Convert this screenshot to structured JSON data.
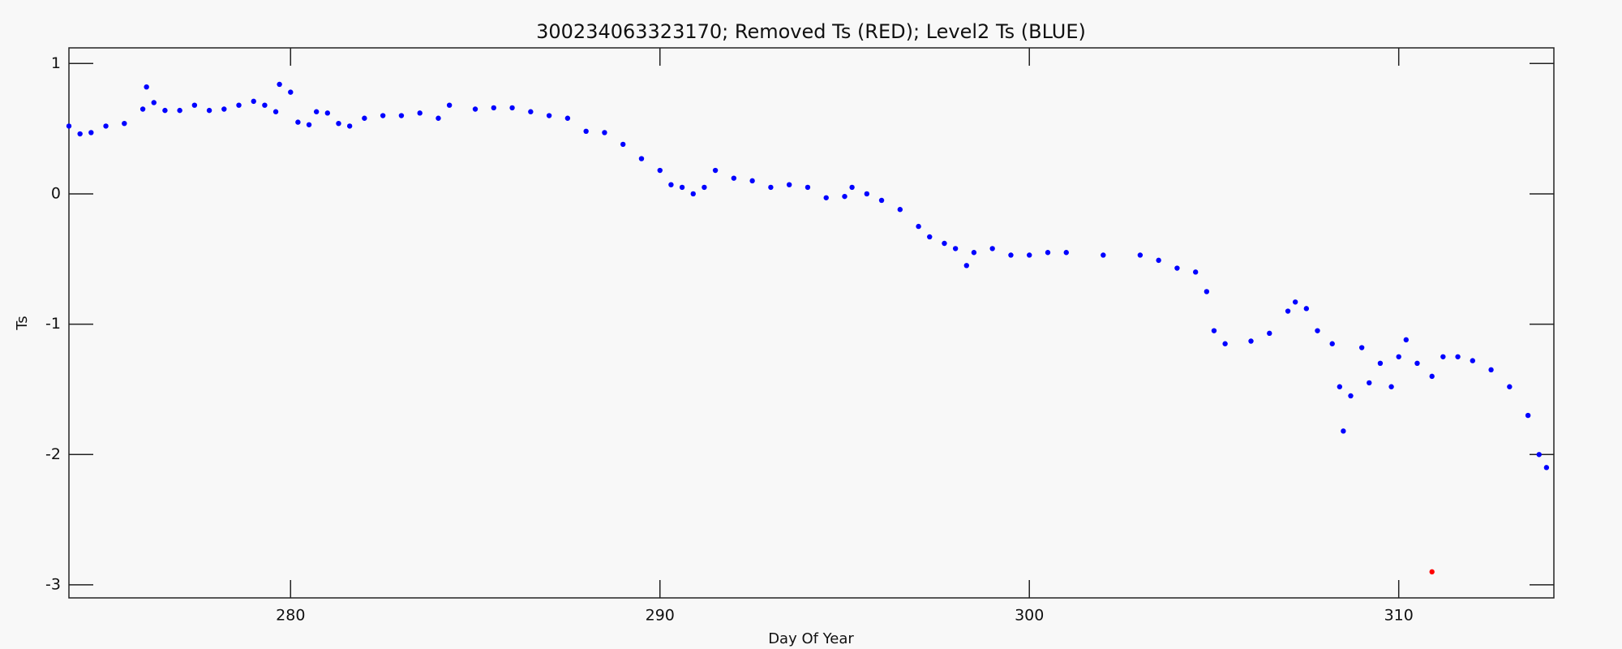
{
  "chart_data": {
    "type": "scatter",
    "title": "300234063323170; Removed Ts (RED); Level2 Ts (BLUE)",
    "x_label": "Day Of Year",
    "y_label": "Ts",
    "xlim": [
      274,
      314.2
    ],
    "ylim": [
      -3.1,
      1.12
    ],
    "xticks": [
      280,
      290,
      300,
      310
    ],
    "yticks": [
      1,
      0,
      -1,
      -2,
      -3
    ],
    "series": [
      {
        "name": "Level2 Ts",
        "color": "#0000ff",
        "x": [
          274.0,
          274.3,
          274.6,
          275.0,
          275.5,
          276.0,
          276.1,
          276.3,
          276.6,
          277.0,
          277.4,
          277.8,
          278.2,
          278.6,
          279.0,
          279.3,
          279.6,
          279.7,
          280.0,
          280.2,
          280.5,
          280.7,
          281.0,
          281.3,
          281.6,
          282.0,
          282.5,
          283.0,
          283.5,
          284.0,
          284.3,
          285.0,
          285.5,
          286.0,
          286.5,
          287.0,
          287.5,
          288.0,
          288.5,
          289.0,
          289.5,
          290.0,
          290.3,
          290.6,
          290.9,
          291.2,
          291.5,
          292.0,
          292.5,
          293.0,
          293.5,
          294.0,
          294.5,
          295.0,
          295.2,
          295.6,
          296.0,
          296.5,
          297.0,
          297.3,
          297.7,
          298.0,
          298.3,
          298.5,
          299.0,
          299.5,
          300.0,
          300.5,
          301.0,
          302.0,
          303.0,
          303.5,
          304.0,
          304.5,
          304.8,
          305.0,
          305.3,
          306.0,
          306.5,
          307.0,
          307.2,
          307.5,
          307.8,
          308.2,
          308.4,
          308.5,
          308.7,
          309.0,
          309.2,
          309.5,
          309.8,
          310.0,
          310.2,
          310.5,
          310.9,
          311.2,
          311.6,
          312.0,
          312.5,
          313.0,
          313.5,
          313.8,
          314.0
        ],
        "values": [
          0.52,
          0.46,
          0.47,
          0.52,
          0.54,
          0.65,
          0.82,
          0.7,
          0.64,
          0.64,
          0.68,
          0.64,
          0.65,
          0.68,
          0.71,
          0.68,
          0.63,
          0.84,
          0.78,
          0.55,
          0.53,
          0.63,
          0.62,
          0.54,
          0.52,
          0.58,
          0.6,
          0.6,
          0.62,
          0.58,
          0.68,
          0.65,
          0.66,
          0.66,
          0.63,
          0.6,
          0.58,
          0.48,
          0.47,
          0.38,
          0.27,
          0.18,
          0.07,
          0.05,
          0.0,
          0.05,
          0.18,
          0.12,
          0.1,
          0.05,
          0.07,
          0.05,
          -0.03,
          -0.02,
          0.05,
          0.0,
          -0.05,
          -0.12,
          -0.25,
          -0.33,
          -0.38,
          -0.42,
          -0.55,
          -0.45,
          -0.42,
          -0.47,
          -0.47,
          -0.45,
          -0.45,
          -0.47,
          -0.47,
          -0.51,
          -0.57,
          -0.6,
          -0.75,
          -1.05,
          -1.15,
          -1.13,
          -1.07,
          -0.9,
          -0.83,
          -0.88,
          -1.05,
          -1.15,
          -1.48,
          -1.82,
          -1.55,
          -1.18,
          -1.45,
          -1.3,
          -1.48,
          -1.25,
          -1.12,
          -1.3,
          -1.4,
          -1.25,
          -1.25,
          -1.28,
          -1.35,
          -1.48,
          -1.7,
          -2.0,
          -2.1
        ]
      },
      {
        "name": "Removed Ts",
        "color": "#ff0000",
        "x": [
          310.9
        ],
        "values": [
          -2.9
        ]
      }
    ]
  }
}
